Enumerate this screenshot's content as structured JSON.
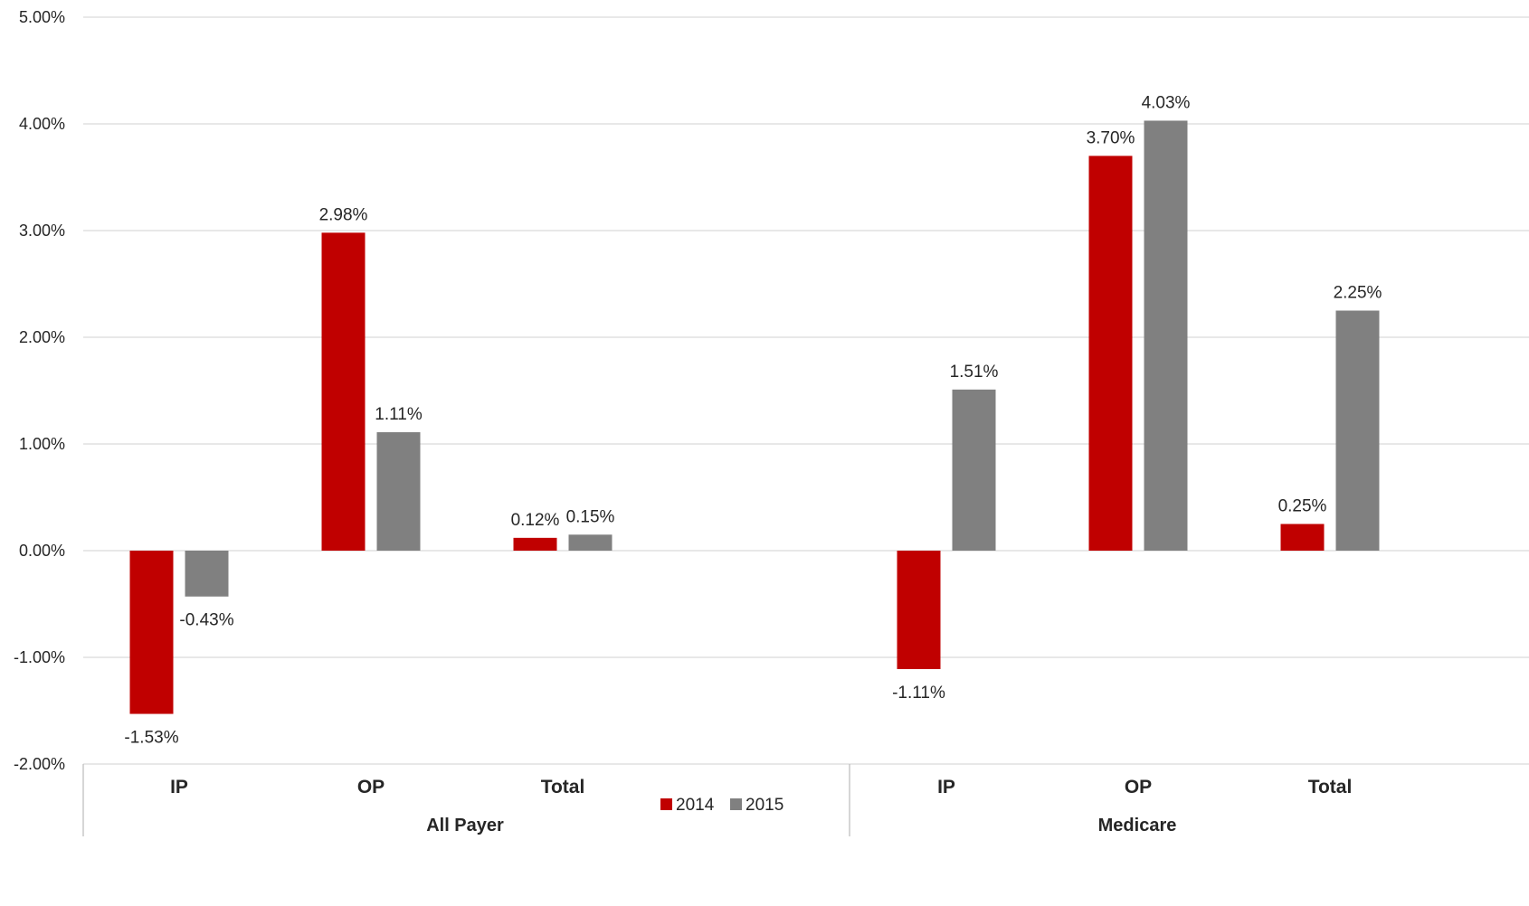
{
  "chart_data": {
    "type": "bar",
    "groups": [
      {
        "label": "All Payer",
        "categories": [
          "IP",
          "OP",
          "Total"
        ]
      },
      {
        "label": "Medicare",
        "categories": [
          "IP",
          "OP",
          "Total"
        ]
      }
    ],
    "categories": [
      "IP",
      "OP",
      "Total",
      "IP",
      "OP",
      "Total"
    ],
    "series": [
      {
        "name": "2014",
        "color": "#C00000",
        "values": [
          -1.53,
          2.98,
          0.12,
          -1.11,
          3.7,
          0.25
        ]
      },
      {
        "name": "2015",
        "color": "#808080",
        "values": [
          -0.43,
          1.11,
          0.15,
          1.51,
          4.03,
          2.25
        ]
      }
    ],
    "data_labels": {
      "2014": [
        "-1.53%",
        "2.98%",
        "0.12%",
        "-1.11%",
        "3.70%",
        "0.25%"
      ],
      "2015": [
        "-0.43%",
        "1.11%",
        "0.15%",
        "1.51%",
        "4.03%",
        "2.25%"
      ]
    },
    "yticks": [
      5,
      4,
      3,
      2,
      1,
      0,
      -1,
      -2
    ],
    "ytick_labels": [
      "5.00%",
      "4.00%",
      "3.00%",
      "2.00%",
      "1.00%",
      "0.00%",
      "-1.00%",
      "-2.00%"
    ],
    "ylim": [
      -2,
      5
    ],
    "grid": true,
    "legend_position": "bottom-center",
    "title": "",
    "xlabel": "",
    "ylabel": ""
  }
}
